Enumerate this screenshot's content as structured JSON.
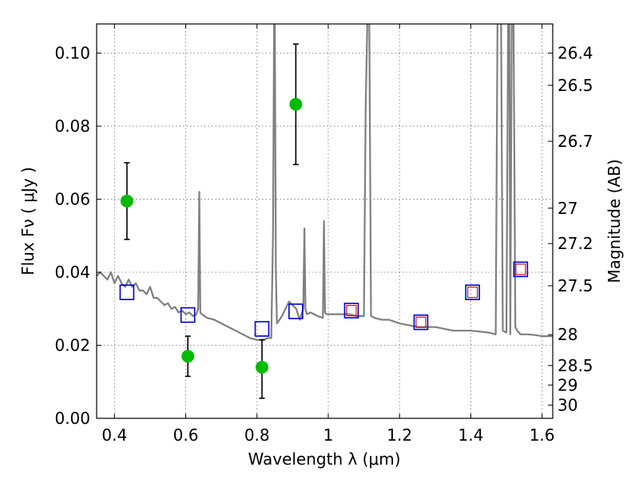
{
  "chart_data": {
    "type": "scatter",
    "xlabel": "Wavelength  λ (μm)",
    "ylabel": "Flux  Fν  ( μJy )",
    "y2label": "Magnitude (AB)",
    "xlim": [
      0.35,
      1.63
    ],
    "ylim": [
      0.0,
      0.108
    ],
    "x_ticks": [
      0.4,
      0.6,
      0.8,
      1.0,
      1.2,
      1.4,
      1.6
    ],
    "x_tick_labels": [
      "0.4",
      "0.6",
      "0.8",
      "1",
      "1.2",
      "1.4",
      "1.6"
    ],
    "y_ticks": [
      0.0,
      0.02,
      0.04,
      0.06,
      0.08,
      0.1
    ],
    "y_tick_labels": [
      "0.00",
      "0.02",
      "0.04",
      "0.06",
      "0.08",
      "0.10"
    ],
    "y2_ticks": [
      26.4,
      26.5,
      26.7,
      27,
      27.2,
      27.5,
      28,
      28.5,
      29,
      30
    ],
    "y2_tick_labels": [
      "26.4",
      "26.5",
      "26.7",
      "27",
      "27.2",
      "27.5",
      "28",
      "28.5",
      "29",
      "30"
    ],
    "grid": true,
    "colors": {
      "spectrum": "#808080",
      "observed": "#00bb00",
      "model_box": "#0000cc",
      "model_inner": "#cc0000",
      "errorbar": "#000000"
    },
    "series": [
      {
        "kind": "line",
        "role": "model spectrum",
        "x": [
          0.35,
          0.36,
          0.37,
          0.38,
          0.39,
          0.4,
          0.41,
          0.42,
          0.43,
          0.44,
          0.45,
          0.46,
          0.47,
          0.48,
          0.49,
          0.5,
          0.51,
          0.52,
          0.53,
          0.54,
          0.55,
          0.56,
          0.57,
          0.58,
          0.59,
          0.6,
          0.61,
          0.62,
          0.63,
          0.635,
          0.638,
          0.641,
          0.645,
          0.66,
          0.68,
          0.7,
          0.72,
          0.74,
          0.76,
          0.78,
          0.8,
          0.82,
          0.83,
          0.84,
          0.845,
          0.848,
          0.85,
          0.853,
          0.856,
          0.86,
          0.87,
          0.88,
          0.89,
          0.9,
          0.91,
          0.92,
          0.93,
          0.933,
          0.936,
          0.94,
          0.95,
          0.97,
          0.985,
          0.988,
          0.991,
          0.995,
          1.0,
          1.02,
          1.04,
          1.06,
          1.08,
          1.1,
          1.105,
          1.11,
          1.115,
          1.12,
          1.13,
          1.15,
          1.17,
          1.2,
          1.25,
          1.3,
          1.35,
          1.4,
          1.45,
          1.47,
          1.475,
          1.48,
          1.485,
          1.49,
          1.5,
          1.505,
          1.508,
          1.511,
          1.515,
          1.52,
          1.525,
          1.53,
          1.535,
          1.54,
          1.56,
          1.58,
          1.6,
          1.63
        ],
        "y": [
          0.039,
          0.04,
          0.039,
          0.038,
          0.04,
          0.037,
          0.039,
          0.037,
          0.036,
          0.038,
          0.036,
          0.037,
          0.035,
          0.035,
          0.034,
          0.036,
          0.033,
          0.033,
          0.032,
          0.031,
          0.0315,
          0.03,
          0.0305,
          0.029,
          0.0295,
          0.0285,
          0.029,
          0.028,
          0.0285,
          0.03,
          0.062,
          0.029,
          0.0285,
          0.0275,
          0.027,
          0.026,
          0.025,
          0.024,
          0.023,
          0.022,
          0.0215,
          0.0215,
          0.022,
          0.022,
          0.05,
          0.11,
          0.11,
          0.04,
          0.026,
          0.0265,
          0.028,
          0.03,
          0.032,
          0.031,
          0.03,
          0.027,
          0.03,
          0.052,
          0.03,
          0.0285,
          0.029,
          0.028,
          0.0275,
          0.054,
          0.029,
          0.0285,
          0.0285,
          0.0285,
          0.0285,
          0.0285,
          0.028,
          0.028,
          0.085,
          0.11,
          0.11,
          0.028,
          0.0275,
          0.027,
          0.027,
          0.026,
          0.025,
          0.025,
          0.024,
          0.024,
          0.0235,
          0.023,
          0.11,
          0.11,
          0.11,
          0.024,
          0.0235,
          0.11,
          0.11,
          0.023,
          0.11,
          0.11,
          0.025,
          0.024,
          0.0235,
          0.023,
          0.023,
          0.0228,
          0.0225,
          0.0225
        ]
      },
      {
        "kind": "errorbar",
        "role": "observed photometry",
        "x": [
          0.435,
          0.606,
          0.814,
          0.909
        ],
        "y": [
          0.0595,
          0.017,
          0.014,
          0.086
        ],
        "yerr_low": [
          0.0105,
          0.0055,
          0.0085,
          0.0165
        ],
        "yerr_high": [
          0.0105,
          0.0055,
          0.0075,
          0.0165
        ]
      },
      {
        "kind": "markers",
        "role": "model photometry",
        "x": [
          0.435,
          0.606,
          0.814,
          0.909,
          1.065,
          1.26,
          1.405,
          1.54
        ],
        "y": [
          0.0345,
          0.0283,
          0.0245,
          0.0293,
          0.0295,
          0.0263,
          0.0345,
          0.0408
        ],
        "inner_marked": [
          false,
          false,
          false,
          false,
          true,
          true,
          true,
          true
        ]
      }
    ]
  }
}
